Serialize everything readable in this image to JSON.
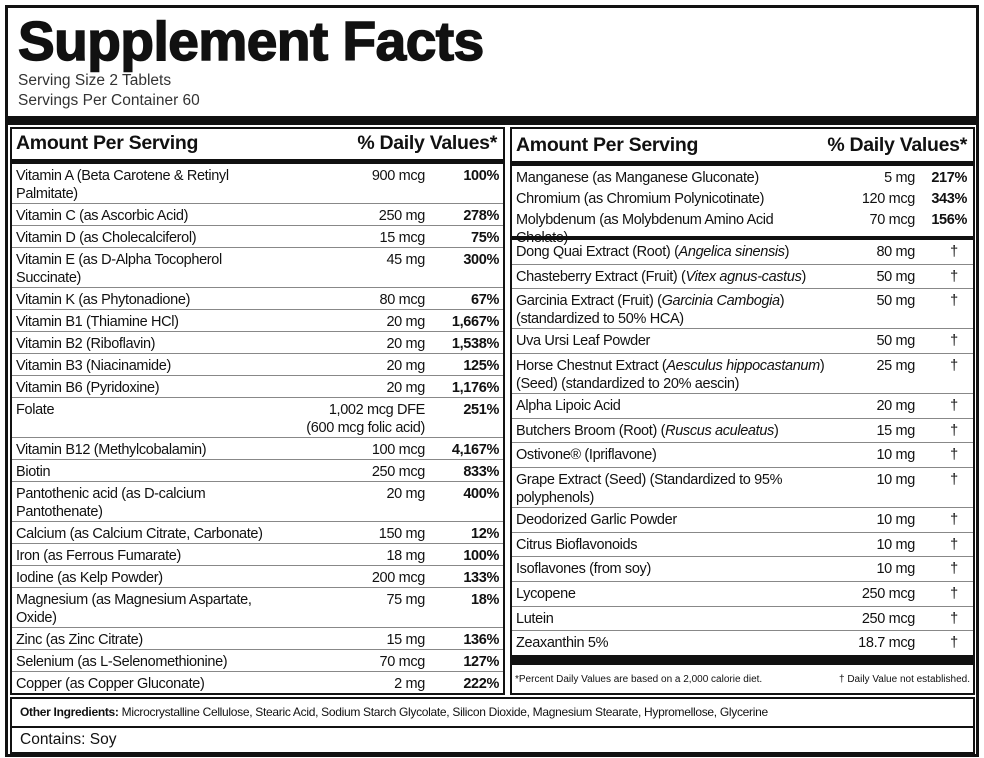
{
  "header": {
    "title": "Supplement Facts",
    "serving_size": "Serving Size 2 Tablets",
    "servings_per_container": "Servings Per Container 60"
  },
  "left_panel": {
    "col_amount": "Amount Per Serving",
    "col_dv": "% Daily Values*",
    "rows": [
      {
        "name": "Vitamin A (Beta Carotene & Retinyl Palmitate)",
        "amount": "900 mcg",
        "dv": "100%"
      },
      {
        "name": "Vitamin C (as Ascorbic Acid)",
        "amount": "250 mg",
        "dv": "278%"
      },
      {
        "name": "Vitamin D (as Cholecalciferol)",
        "amount": "15 mcg",
        "dv": "75%"
      },
      {
        "name": "Vitamin E (as D-Alpha Tocopherol Succinate)",
        "amount": "45 mg",
        "dv": "300%"
      },
      {
        "name": "Vitamin K (as Phytonadione)",
        "amount": "80 mcg",
        "dv": "67%"
      },
      {
        "name": "Vitamin B1 (Thiamine HCl)",
        "amount": "20 mg",
        "dv": "1,667%"
      },
      {
        "name": "Vitamin B2 (Riboflavin)",
        "amount": "20 mg",
        "dv": "1,538%"
      },
      {
        "name": "Vitamin B3 (Niacinamide)",
        "amount": "20 mg",
        "dv": "125%"
      },
      {
        "name": "Vitamin B6 (Pyridoxine)",
        "amount": "20 mg",
        "dv": "1,176%"
      },
      {
        "name": "Folate",
        "amount": "1,002 mcg DFE",
        "amount_line2": "(600 mcg folic acid)",
        "dv": "251%"
      },
      {
        "name": "Vitamin B12 (Methylcobalamin)",
        "amount": "100 mcg",
        "dv": "4,167%"
      },
      {
        "name": "Biotin",
        "amount": "250 mcg",
        "dv": "833%"
      },
      {
        "name": "Pantothenic acid (as D-calcium Pantothenate)",
        "amount": "20 mg",
        "dv": "400%"
      },
      {
        "name": "Calcium (as Calcium Citrate, Carbonate)",
        "amount": "150 mg",
        "dv": "12%"
      },
      {
        "name": "Iron (as Ferrous Fumarate)",
        "amount": "18 mg",
        "dv": "100%"
      },
      {
        "name": "Iodine (as Kelp Powder)",
        "amount": "200 mcg",
        "dv": "133%"
      },
      {
        "name": "Magnesium (as Magnesium Aspartate, Oxide)",
        "amount": "75 mg",
        "dv": "18%"
      },
      {
        "name": "Zinc (as Zinc Citrate)",
        "amount": "15 mg",
        "dv": "136%"
      },
      {
        "name": "Selenium (as L-Selenomethionine)",
        "amount": "70 mcg",
        "dv": "127%"
      },
      {
        "name": "Copper (as Copper Gluconate)",
        "amount": "2 mg",
        "dv": "222%"
      }
    ]
  },
  "right_panel": {
    "col_amount": "Amount Per Serving",
    "col_dv": "% Daily Values*",
    "rows": [
      {
        "name": "Manganese (as Manganese Gluconate)",
        "amount": "5 mg",
        "dv": "217%"
      },
      {
        "name": "Chromium (as Chromium Polynicotinate)",
        "amount": "120 mcg",
        "dv": "343%"
      },
      {
        "name": "Molybdenum (as Molybdenum Amino Acid Chelate)",
        "amount": "70 mcg",
        "dv": "156%"
      }
    ],
    "rows_2": [
      {
        "name": [
          "Dong Quai Extract (Root) (",
          "Angelica sinensis",
          ")"
        ],
        "amount": "80 mg",
        "dv": "†"
      },
      {
        "name": [
          "Chasteberry Extract (Fruit) (",
          "Vitex agnus-castus",
          ")"
        ],
        "amount": "50 mg",
        "dv": "†"
      },
      {
        "name": [
          "Garcinia Extract (Fruit) (",
          "Garcinia Cambogia",
          ")"
        ],
        "name_line2": "(standardized to 50% HCA)",
        "amount": "50 mg",
        "dv": "†"
      },
      {
        "name": "Uva Ursi Leaf Powder",
        "amount": "50 mg",
        "dv": "†"
      },
      {
        "name": [
          "Horse Chestnut Extract (",
          "Aesculus hippocastanum",
          ")"
        ],
        "name_line2": "(Seed) (standardized to 20% aescin)",
        "amount": "25 mg",
        "dv": "†"
      },
      {
        "name": "Alpha Lipoic Acid",
        "amount": "20 mg",
        "dv": "†"
      },
      {
        "name": [
          "Butchers Broom (Root) (",
          "Ruscus aculeatus",
          ")"
        ],
        "amount": "15 mg",
        "dv": "†"
      },
      {
        "name": "Ostivone® (Ipriflavone)",
        "amount": "10 mg",
        "dv": "†"
      },
      {
        "name": "Grape Extract (Seed) (Standardized to 95% polyphenols)",
        "amount": "10 mg",
        "dv": "†"
      },
      {
        "name": "Deodorized Garlic Powder",
        "amount": "10 mg",
        "dv": "†"
      },
      {
        "name": "Citrus Bioflavonoids",
        "amount": "10 mg",
        "dv": "†"
      },
      {
        "name": "Isoflavones (from soy)",
        "amount": "10 mg",
        "dv": "†"
      },
      {
        "name": "Lycopene",
        "amount": "250 mcg",
        "dv": "†"
      },
      {
        "name": "Lutein",
        "amount": "250 mcg",
        "dv": "†"
      },
      {
        "name": "Zeaxanthin 5%",
        "amount": "18.7 mcg",
        "dv": "†"
      }
    ],
    "footnote_left": "*Percent Daily Values are based on a 2,000 calorie diet.",
    "footnote_right": "† Daily Value not established."
  },
  "other_ingredients": {
    "label": "Other Ingredients:",
    "text": " Microcrystalline Cellulose, Stearic Acid, Sodium Starch Glycolate, Silicon Dioxide, Magnesium Stearate, Hypromellose, Glycerine"
  },
  "contains": "Contains: Soy"
}
